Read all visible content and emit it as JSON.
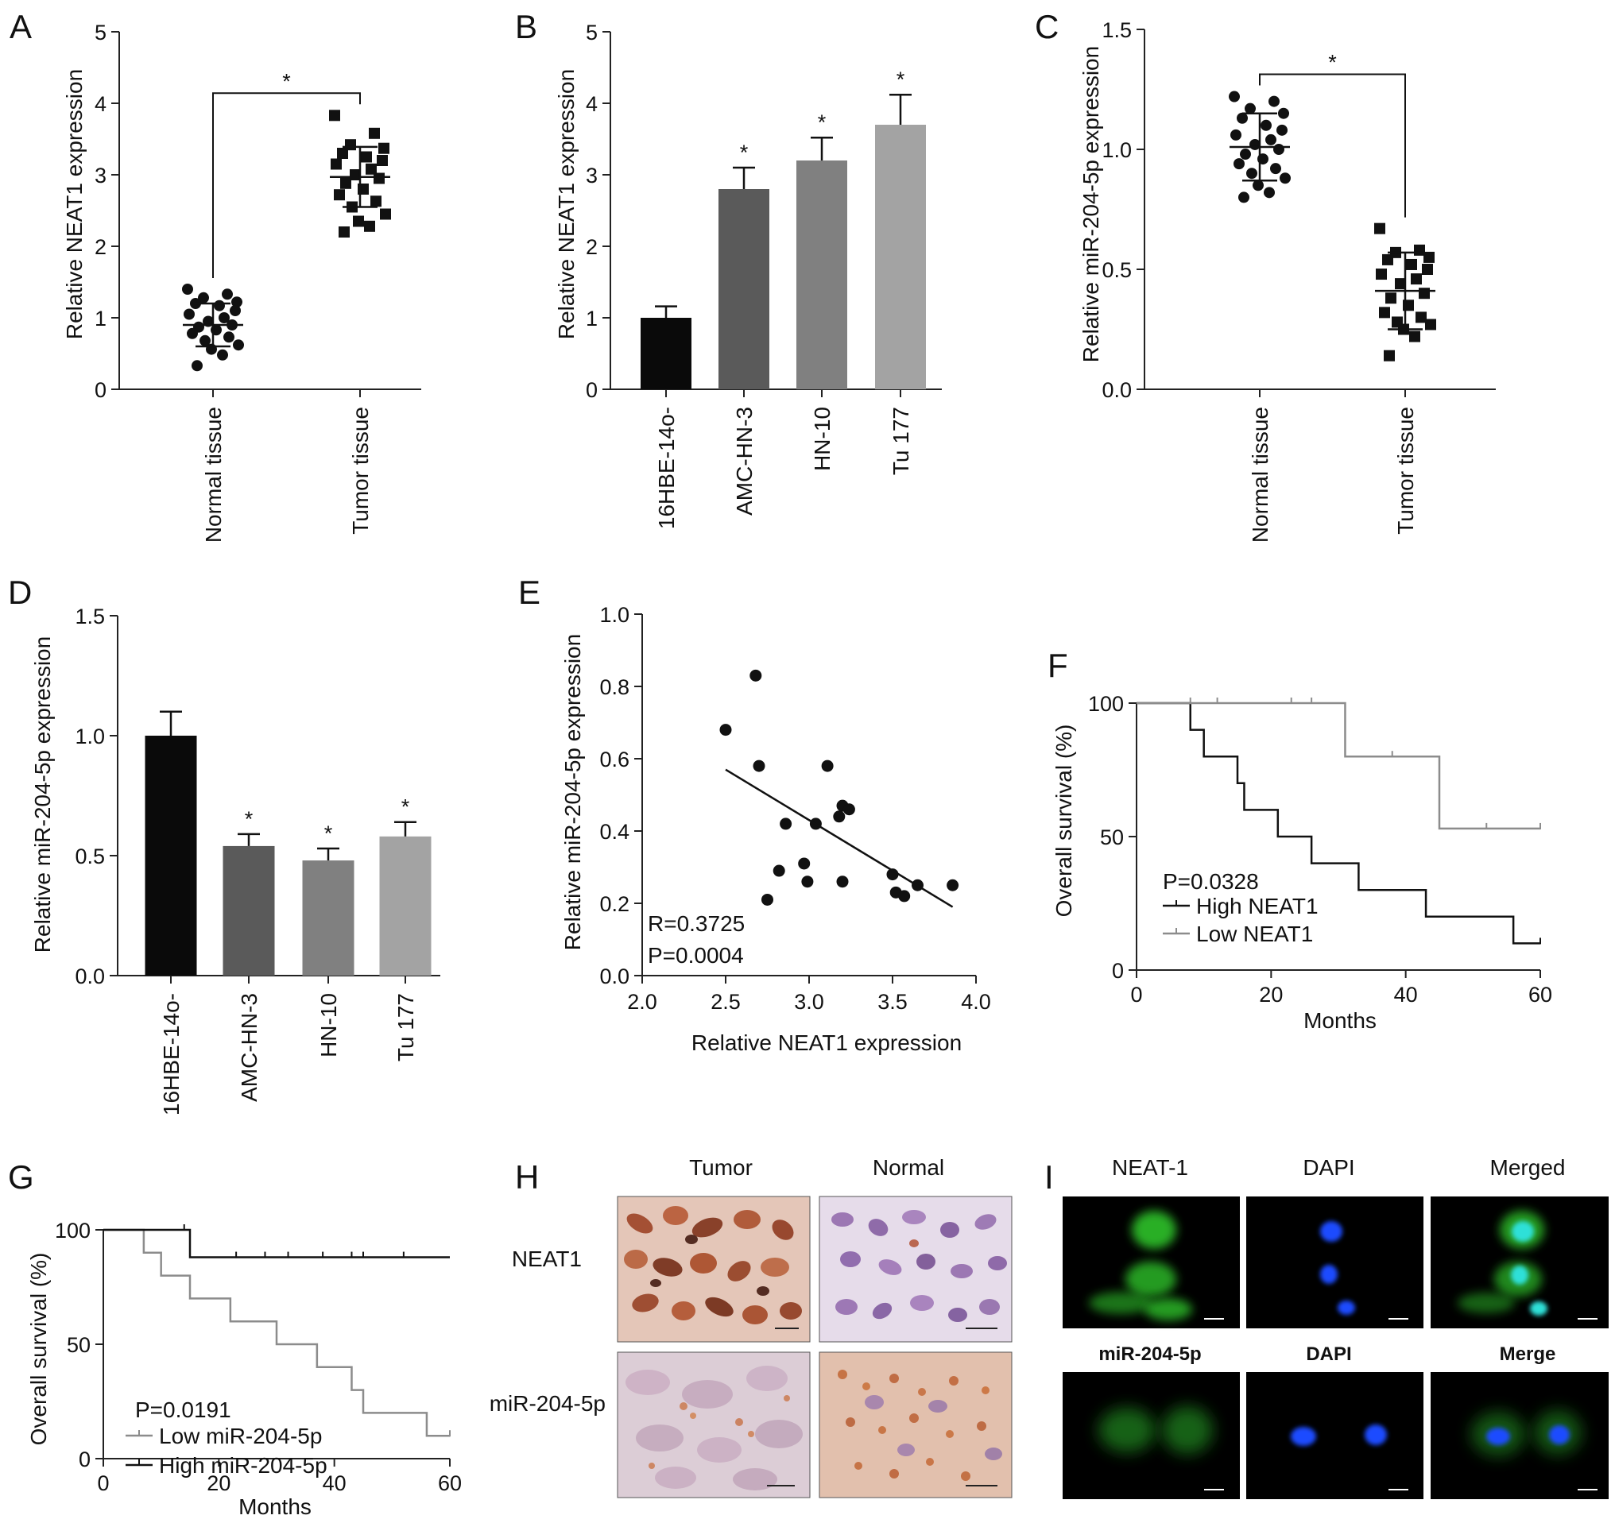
{
  "panels": {
    "A": {
      "label": "A",
      "ylabel": "Relative NEAT1 expression",
      "sig": "*"
    },
    "B": {
      "label": "B",
      "ylabel": "Relative NEAT1 expression"
    },
    "C": {
      "label": "C",
      "ylabel": "Relative miR-204-5p expression",
      "sig": "*"
    },
    "D": {
      "label": "D",
      "ylabel": "Relative miR-204-5p expression"
    },
    "E": {
      "label": "E",
      "ylabel": "Relative miR-204-5p expression",
      "xlabel": "Relative NEAT1 expression",
      "r_text": "R=0.3725",
      "p_text": "P=0.0004"
    },
    "F": {
      "label": "F",
      "ylabel": "Overall survival (%)",
      "xlabel": "Months",
      "p_text": "P=0.0328"
    },
    "G": {
      "label": "G",
      "ylabel": "Overall survival (%)",
      "xlabel": "Months",
      "p_text": "P=0.0191"
    },
    "H": {
      "label": "H",
      "col_headers": [
        "Tumor",
        "Normal"
      ],
      "row_headers": [
        "NEAT1",
        "miR-204-5p"
      ]
    },
    "I": {
      "label": "I",
      "top_headers": [
        "NEAT-1",
        "DAPI",
        "Merged"
      ],
      "bottom_headers": [
        "miR-204-5p",
        "DAPI",
        "Merge"
      ]
    }
  },
  "colors": {
    "bar_16HBE": "#0a0a0a",
    "bar_AMC": "#5a5a5a",
    "bar_HN10": "#808080",
    "bar_Tu177": "#a3a3a3",
    "high_line": "#111111",
    "low_line": "#8c8c8c",
    "fluor_green": "#2fc22a",
    "fluor_blue": "#1a4cff",
    "fluor_cyan": "#2fe0d8"
  },
  "chart_data": [
    {
      "id": "A",
      "type": "scatter",
      "categories": [
        "Normal tissue",
        "Tumor tissue"
      ],
      "ylabel": "Relative NEAT1 expression",
      "ylim": [
        0,
        5
      ],
      "yticks": [
        0,
        1,
        2,
        3,
        4,
        5
      ],
      "series": [
        {
          "marker": "circle",
          "mean": 0.9,
          "sd": 0.3,
          "values": [
            1.4,
            1.33,
            1.28,
            1.22,
            1.2,
            1.17,
            1.1,
            1.05,
            1.0,
            0.95,
            0.9,
            0.87,
            0.83,
            0.78,
            0.73,
            0.68,
            0.62,
            0.56,
            0.48,
            0.33
          ]
        },
        {
          "marker": "square",
          "mean": 2.97,
          "sd": 0.42,
          "values": [
            3.83,
            3.58,
            3.42,
            3.37,
            3.3,
            3.25,
            3.2,
            3.15,
            3.08,
            3.0,
            2.95,
            2.88,
            2.8,
            2.72,
            2.63,
            2.55,
            2.45,
            2.35,
            2.28,
            2.2
          ]
        }
      ],
      "significance": "*"
    },
    {
      "id": "B",
      "type": "bar",
      "categories": [
        "16HBE-14o-",
        "AMC-HN-3",
        "HN-10",
        "Tu 177"
      ],
      "values": [
        1.0,
        2.8,
        3.2,
        3.7
      ],
      "errors": [
        0.16,
        0.3,
        0.32,
        0.42
      ],
      "significance": [
        "",
        "*",
        "*",
        "*"
      ],
      "ylabel": "Relative NEAT1 expression",
      "ylim": [
        0,
        5
      ],
      "yticks": [
        0,
        1,
        2,
        3,
        4,
        5
      ]
    },
    {
      "id": "C",
      "type": "scatter",
      "categories": [
        "Normal tissue",
        "Tumor tissue"
      ],
      "ylabel": "Relative miR-204-5p expression",
      "ylim": [
        0,
        1.5
      ],
      "yticks": [
        "0.0",
        "0.5",
        "1.0",
        "1.5"
      ],
      "series": [
        {
          "marker": "circle",
          "mean": 1.01,
          "sd": 0.14,
          "values": [
            1.22,
            1.2,
            1.17,
            1.15,
            1.13,
            1.1,
            1.08,
            1.06,
            1.04,
            1.02,
            1.0,
            0.98,
            0.96,
            0.94,
            0.92,
            0.9,
            0.88,
            0.85,
            0.82,
            0.8
          ]
        },
        {
          "marker": "square",
          "mean": 0.41,
          "sd": 0.16,
          "values": [
            0.67,
            0.58,
            0.57,
            0.55,
            0.54,
            0.52,
            0.5,
            0.48,
            0.46,
            0.44,
            0.4,
            0.38,
            0.35,
            0.32,
            0.3,
            0.28,
            0.27,
            0.25,
            0.22,
            0.14
          ]
        }
      ],
      "significance": "*"
    },
    {
      "id": "D",
      "type": "bar",
      "categories": [
        "16HBE-14o-",
        "AMC-HN-3",
        "HN-10",
        "Tu 177"
      ],
      "values": [
        1.0,
        0.54,
        0.48,
        0.58
      ],
      "errors": [
        0.1,
        0.05,
        0.05,
        0.06
      ],
      "significance": [
        "",
        "*",
        "*",
        "*"
      ],
      "ylabel": "Relative miR-204-5p expression",
      "ylim": [
        0,
        1.5
      ],
      "yticks": [
        "0.0",
        "0.5",
        "1.0",
        "1.5"
      ]
    },
    {
      "id": "E",
      "type": "scatter",
      "xlabel": "Relative NEAT1 expression",
      "ylabel": "Relative miR-204-5p expression",
      "xlim": [
        2.0,
        4.0
      ],
      "ylim": [
        0,
        1.0
      ],
      "xticks": [
        "2.0",
        "2.5",
        "3.0",
        "3.5",
        "4.0"
      ],
      "yticks": [
        "0.0",
        "0.2",
        "0.4",
        "0.6",
        "0.8",
        "1.0"
      ],
      "points": [
        [
          2.5,
          0.68
        ],
        [
          2.68,
          0.83
        ],
        [
          2.7,
          0.58
        ],
        [
          2.75,
          0.21
        ],
        [
          2.82,
          0.29
        ],
        [
          2.86,
          0.42
        ],
        [
          2.97,
          0.31
        ],
        [
          2.99,
          0.26
        ],
        [
          3.04,
          0.42
        ],
        [
          3.11,
          0.58
        ],
        [
          3.18,
          0.44
        ],
        [
          3.2,
          0.47
        ],
        [
          3.24,
          0.46
        ],
        [
          3.2,
          0.26
        ],
        [
          3.5,
          0.28
        ],
        [
          3.52,
          0.23
        ],
        [
          3.57,
          0.22
        ],
        [
          3.65,
          0.25
        ],
        [
          3.86,
          0.25
        ]
      ],
      "fit": [
        [
          2.5,
          0.57
        ],
        [
          3.86,
          0.19
        ]
      ],
      "annotations": [
        "R=0.3725",
        "P=0.0004"
      ]
    },
    {
      "id": "F",
      "type": "line",
      "step": true,
      "xlabel": "Months",
      "ylabel": "Overall survival (%)",
      "xlim": [
        0,
        60
      ],
      "ylim": [
        0,
        100
      ],
      "xticks": [
        0,
        20,
        40,
        60
      ],
      "yticks": [
        0,
        50,
        100
      ],
      "series": [
        {
          "name": "High NEAT1",
          "color": "#111111",
          "steps": [
            [
              0,
              100
            ],
            [
              8,
              90
            ],
            [
              10,
              80
            ],
            [
              15,
              70
            ],
            [
              16,
              60
            ],
            [
              21,
              50
            ],
            [
              26,
              40
            ],
            [
              33,
              30
            ],
            [
              43,
              20
            ],
            [
              56,
              10
            ],
            [
              60,
              10
            ]
          ],
          "censored": [
            60
          ]
        },
        {
          "name": "Low NEAT1",
          "color": "#8c8c8c",
          "steps": [
            [
              0,
              100
            ],
            [
              31,
              80
            ],
            [
              45,
              53
            ],
            [
              60,
              53
            ]
          ],
          "censored": [
            8,
            12,
            23,
            26,
            38,
            52,
            60
          ]
        }
      ],
      "annotations": [
        "P=0.0328"
      ]
    },
    {
      "id": "G",
      "type": "line",
      "step": true,
      "xlabel": "Months",
      "ylabel": "Overall survival (%)",
      "xlim": [
        0,
        60
      ],
      "ylim": [
        0,
        100
      ],
      "xticks": [
        0,
        20,
        40,
        60
      ],
      "yticks": [
        0,
        50,
        100
      ],
      "series": [
        {
          "name": "Low miR-204-5p",
          "color": "#8c8c8c",
          "steps": [
            [
              0,
              100
            ],
            [
              7,
              90
            ],
            [
              10,
              80
            ],
            [
              15,
              70
            ],
            [
              22,
              60
            ],
            [
              30,
              50
            ],
            [
              37,
              40
            ],
            [
              43,
              30
            ],
            [
              45,
              20
            ],
            [
              56,
              10
            ],
            [
              60,
              10
            ]
          ],
          "censored": [
            60
          ]
        },
        {
          "name": "High miR-204-5p",
          "color": "#111111",
          "steps": [
            [
              0,
              100
            ],
            [
              15,
              88
            ],
            [
              60,
              88
            ]
          ],
          "censored": [
            14,
            23,
            28,
            32,
            38,
            43,
            45,
            52
          ]
        }
      ],
      "annotations": [
        "P=0.0191"
      ]
    }
  ]
}
